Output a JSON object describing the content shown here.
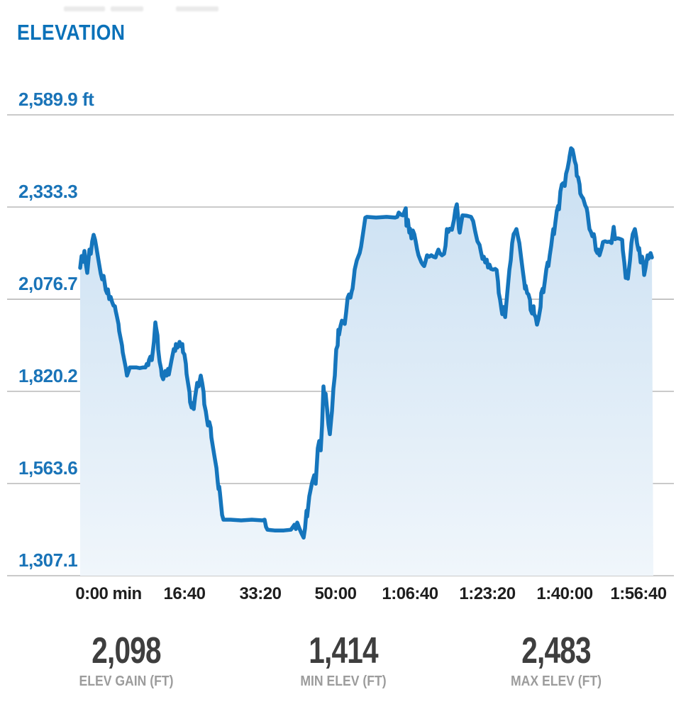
{
  "header": {
    "title": "ELEVATION"
  },
  "colors": {
    "title_blue": "#0a71b9",
    "axis_label_blue": "#1a74b8",
    "line_blue": "#1575bc",
    "fill_top": "#c9dff2",
    "fill_bottom": "#f0f6fb",
    "gridline_gray": "#ababab",
    "x_label_dark": "#1e1e1e",
    "stat_value_gray": "#3e3e3e",
    "stat_label_gray": "#9c9c9c"
  },
  "chart_data": {
    "type": "area",
    "title": "ELEVATION",
    "y_unit": "ft",
    "x_unit": "elapsed time (h:mm:ss)",
    "grid": "horizontal-only",
    "legend": "none",
    "y_tick_labels": [
      "2,589.9 ft",
      "2,333.3",
      "2,076.7",
      "1,820.2",
      "1,563.6",
      "1,307.1"
    ],
    "y_tick_values": [
      2589.9,
      2333.3,
      2076.7,
      1820.2,
      1563.6,
      1307.1
    ],
    "ylim": [
      1307.1,
      2589.9
    ],
    "x_tick_labels": [
      "0:00 min",
      "16:40",
      "33:20",
      "50:00",
      "1:06:40",
      "1:23:20",
      "1:40:00",
      "1:56:40"
    ],
    "t_range_seconds": [
      0,
      7533
    ],
    "series_name": "elevation_profile",
    "points_format": "[t_seconds, elevation_ft]",
    "points": [
      [
        0,
        2164
      ],
      [
        19,
        2197
      ],
      [
        37,
        2181
      ],
      [
        56,
        2211
      ],
      [
        75,
        2175
      ],
      [
        93,
        2150
      ],
      [
        122,
        2215
      ],
      [
        140,
        2203
      ],
      [
        159,
        2238
      ],
      [
        178,
        2256
      ],
      [
        196,
        2242
      ],
      [
        215,
        2219
      ],
      [
        243,
        2183
      ],
      [
        271,
        2148
      ],
      [
        290,
        2132
      ],
      [
        308,
        2142
      ],
      [
        337,
        2102
      ],
      [
        355,
        2093
      ],
      [
        365,
        2104
      ],
      [
        383,
        2077
      ],
      [
        402,
        2083
      ],
      [
        421,
        2069
      ],
      [
        439,
        2059
      ],
      [
        458,
        2057
      ],
      [
        467,
        2045
      ],
      [
        486,
        2027
      ],
      [
        505,
        2008
      ],
      [
        514,
        1988
      ],
      [
        533,
        1968
      ],
      [
        551,
        1948
      ],
      [
        561,
        1929
      ],
      [
        579,
        1909
      ],
      [
        598,
        1889
      ],
      [
        617,
        1864
      ],
      [
        636,
        1875
      ],
      [
        654,
        1887
      ],
      [
        692,
        1887
      ],
      [
        738,
        1887
      ],
      [
        785,
        1885
      ],
      [
        832,
        1887
      ],
      [
        860,
        1887
      ],
      [
        879,
        1897
      ],
      [
        897,
        1893
      ],
      [
        907,
        1907
      ],
      [
        925,
        1917
      ],
      [
        944,
        1907
      ],
      [
        972,
        1958
      ],
      [
        991,
        2012
      ],
      [
        1000,
        1998
      ],
      [
        1019,
        1976
      ],
      [
        1028,
        1937
      ],
      [
        1047,
        1903
      ],
      [
        1066,
        1883
      ],
      [
        1075,
        1864
      ],
      [
        1094,
        1854
      ],
      [
        1122,
        1877
      ],
      [
        1140,
        1864
      ],
      [
        1159,
        1883
      ],
      [
        1168,
        1867
      ],
      [
        1206,
        1909
      ],
      [
        1234,
        1938
      ],
      [
        1252,
        1933
      ],
      [
        1262,
        1952
      ],
      [
        1281,
        1942
      ],
      [
        1299,
        1948
      ],
      [
        1309,
        1958
      ],
      [
        1327,
        1946
      ],
      [
        1346,
        1952
      ],
      [
        1355,
        1929
      ],
      [
        1374,
        1923
      ],
      [
        1393,
        1897
      ],
      [
        1402,
        1869
      ],
      [
        1421,
        1844
      ],
      [
        1440,
        1818
      ],
      [
        1449,
        1790
      ],
      [
        1468,
        1775
      ],
      [
        1486,
        1788
      ],
      [
        1496,
        1771
      ],
      [
        1514,
        1804
      ],
      [
        1533,
        1830
      ],
      [
        1542,
        1844
      ],
      [
        1561,
        1834
      ],
      [
        1589,
        1864
      ],
      [
        1608,
        1844
      ],
      [
        1626,
        1818
      ],
      [
        1636,
        1784
      ],
      [
        1655,
        1765
      ],
      [
        1673,
        1739
      ],
      [
        1683,
        1725
      ],
      [
        1701,
        1735
      ],
      [
        1720,
        1719
      ],
      [
        1729,
        1692
      ],
      [
        1767,
        1642
      ],
      [
        1795,
        1607
      ],
      [
        1813,
        1567
      ],
      [
        1823,
        1548
      ],
      [
        1832,
        1555
      ],
      [
        1841,
        1538
      ],
      [
        1860,
        1498
      ],
      [
        1870,
        1476
      ],
      [
        1888,
        1463
      ],
      [
        1981,
        1463
      ],
      [
        2122,
        1461
      ],
      [
        2262,
        1463
      ],
      [
        2402,
        1461
      ],
      [
        2430,
        1463
      ],
      [
        2449,
        1443
      ],
      [
        2468,
        1435
      ],
      [
        2561,
        1433
      ],
      [
        2683,
        1433
      ],
      [
        2776,
        1435
      ],
      [
        2804,
        1443
      ],
      [
        2823,
        1449
      ],
      [
        2842,
        1437
      ],
      [
        2860,
        1455
      ],
      [
        2888,
        1439
      ],
      [
        2916,
        1425
      ],
      [
        2944,
        1413
      ],
      [
        2963,
        1439
      ],
      [
        2982,
        1488
      ],
      [
        2991,
        1472
      ],
      [
        3019,
        1528
      ],
      [
        3056,
        1567
      ],
      [
        3084,
        1587
      ],
      [
        3103,
        1563
      ],
      [
        3131,
        1662
      ],
      [
        3150,
        1682
      ],
      [
        3169,
        1656
      ],
      [
        3187,
        1725
      ],
      [
        3206,
        1834
      ],
      [
        3225,
        1788
      ],
      [
        3234,
        1814
      ],
      [
        3253,
        1771
      ],
      [
        3271,
        1729
      ],
      [
        3290,
        1701
      ],
      [
        3309,
        1745
      ],
      [
        3318,
        1765
      ],
      [
        3337,
        1828
      ],
      [
        3355,
        1864
      ],
      [
        3365,
        1903
      ],
      [
        3374,
        1937
      ],
      [
        3393,
        1948
      ],
      [
        3402,
        1992
      ],
      [
        3411,
        1978
      ],
      [
        3430,
        2002
      ],
      [
        3449,
        2017
      ],
      [
        3467,
        2012
      ],
      [
        3486,
        2008
      ],
      [
        3505,
        2041
      ],
      [
        3524,
        2081
      ],
      [
        3542,
        2090
      ],
      [
        3561,
        2081
      ],
      [
        3580,
        2100
      ],
      [
        3589,
        2106
      ],
      [
        3608,
        2140
      ],
      [
        3617,
        2159
      ],
      [
        3645,
        2185
      ],
      [
        3664,
        2195
      ],
      [
        3682,
        2205
      ],
      [
        3701,
        2223
      ],
      [
        3711,
        2238
      ],
      [
        3739,
        2278
      ],
      [
        3757,
        2304
      ],
      [
        3776,
        2306
      ],
      [
        3898,
        2304
      ],
      [
        4038,
        2306
      ],
      [
        4150,
        2304
      ],
      [
        4178,
        2306
      ],
      [
        4197,
        2318
      ],
      [
        4225,
        2312
      ],
      [
        4253,
        2310
      ],
      [
        4290,
        2330
      ],
      [
        4299,
        2281
      ],
      [
        4318,
        2298
      ],
      [
        4337,
        2262
      ],
      [
        4346,
        2273
      ],
      [
        4365,
        2246
      ],
      [
        4383,
        2268
      ],
      [
        4402,
        2258
      ],
      [
        4421,
        2238
      ],
      [
        4440,
        2215
      ],
      [
        4458,
        2199
      ],
      [
        4477,
        2189
      ],
      [
        4496,
        2179
      ],
      [
        4514,
        2173
      ],
      [
        4533,
        2169
      ],
      [
        4552,
        2183
      ],
      [
        4570,
        2199
      ],
      [
        4598,
        2195
      ],
      [
        4626,
        2199
      ],
      [
        4654,
        2195
      ],
      [
        4682,
        2193
      ],
      [
        4701,
        2205
      ],
      [
        4720,
        2215
      ],
      [
        4738,
        2205
      ],
      [
        4767,
        2199
      ],
      [
        4795,
        2203
      ],
      [
        4813,
        2225
      ],
      [
        4832,
        2272
      ],
      [
        4851,
        2264
      ],
      [
        4869,
        2273
      ],
      [
        4897,
        2270
      ],
      [
        4925,
        2298
      ],
      [
        4944,
        2327
      ],
      [
        4963,
        2341
      ],
      [
        4982,
        2298
      ],
      [
        4991,
        2272
      ],
      [
        5000,
        2262
      ],
      [
        5019,
        2287
      ],
      [
        5038,
        2310
      ],
      [
        5094,
        2309
      ],
      [
        5150,
        2306
      ],
      [
        5178,
        2294
      ],
      [
        5206,
        2264
      ],
      [
        5234,
        2238
      ],
      [
        5262,
        2228
      ],
      [
        5281,
        2208
      ],
      [
        5300,
        2189
      ],
      [
        5318,
        2195
      ],
      [
        5337,
        2179
      ],
      [
        5356,
        2187
      ],
      [
        5374,
        2165
      ],
      [
        5393,
        2173
      ],
      [
        5412,
        2161
      ],
      [
        5440,
        2159
      ],
      [
        5468,
        2161
      ],
      [
        5487,
        2158
      ],
      [
        5505,
        2126
      ],
      [
        5515,
        2094
      ],
      [
        5533,
        2075
      ],
      [
        5552,
        2047
      ],
      [
        5561,
        2035
      ],
      [
        5580,
        2055
      ],
      [
        5599,
        2027
      ],
      [
        5627,
        2094
      ],
      [
        5655,
        2159
      ],
      [
        5673,
        2185
      ],
      [
        5692,
        2233
      ],
      [
        5711,
        2258
      ],
      [
        5730,
        2264
      ],
      [
        5748,
        2272
      ],
      [
        5767,
        2252
      ],
      [
        5786,
        2233
      ],
      [
        5814,
        2185
      ],
      [
        5833,
        2154
      ],
      [
        5851,
        2126
      ],
      [
        5861,
        2106
      ],
      [
        5870,
        2114
      ],
      [
        5889,
        2094
      ],
      [
        5907,
        2090
      ],
      [
        5926,
        2075
      ],
      [
        5935,
        2047
      ],
      [
        5954,
        2037
      ],
      [
        5973,
        2057
      ],
      [
        5982,
        2035
      ],
      [
        6001,
        2027
      ],
      [
        6019,
        2006
      ],
      [
        6038,
        2021
      ],
      [
        6066,
        2055
      ],
      [
        6075,
        2094
      ],
      [
        6094,
        2106
      ],
      [
        6103,
        2096
      ],
      [
        6122,
        2126
      ],
      [
        6141,
        2159
      ],
      [
        6159,
        2179
      ],
      [
        6169,
        2169
      ],
      [
        6187,
        2199
      ],
      [
        6206,
        2225
      ],
      [
        6225,
        2258
      ],
      [
        6234,
        2272
      ],
      [
        6243,
        2258
      ],
      [
        6262,
        2292
      ],
      [
        6281,
        2323
      ],
      [
        6299,
        2337
      ],
      [
        6309,
        2327
      ],
      [
        6327,
        2377
      ],
      [
        6346,
        2396
      ],
      [
        6365,
        2400
      ],
      [
        6384,
        2392
      ],
      [
        6402,
        2426
      ],
      [
        6421,
        2440
      ],
      [
        6440,
        2462
      ],
      [
        6449,
        2475
      ],
      [
        6468,
        2497
      ],
      [
        6487,
        2493
      ],
      [
        6505,
        2475
      ],
      [
        6515,
        2462
      ],
      [
        6533,
        2450
      ],
      [
        6543,
        2420
      ],
      [
        6561,
        2416
      ],
      [
        6580,
        2396
      ],
      [
        6589,
        2371
      ],
      [
        6608,
        2363
      ],
      [
        6627,
        2357
      ],
      [
        6655,
        2337
      ],
      [
        6673,
        2330
      ],
      [
        6683,
        2318
      ],
      [
        6701,
        2287
      ],
      [
        6711,
        2272
      ],
      [
        6729,
        2264
      ],
      [
        6748,
        2252
      ],
      [
        6767,
        2258
      ],
      [
        6776,
        2248
      ],
      [
        6795,
        2213
      ],
      [
        6814,
        2205
      ],
      [
        6823,
        2215
      ],
      [
        6842,
        2199
      ],
      [
        6870,
        2219
      ],
      [
        6888,
        2236
      ],
      [
        6916,
        2238
      ],
      [
        6944,
        2236
      ],
      [
        6973,
        2237
      ],
      [
        7001,
        2233
      ],
      [
        7029,
        2278
      ],
      [
        7048,
        2244
      ],
      [
        7066,
        2246
      ],
      [
        7094,
        2246
      ],
      [
        7122,
        2244
      ],
      [
        7141,
        2242
      ],
      [
        7150,
        2213
      ],
      [
        7169,
        2179
      ],
      [
        7188,
        2136
      ],
      [
        7197,
        2154
      ],
      [
        7216,
        2134
      ],
      [
        7244,
        2185
      ],
      [
        7263,
        2233
      ],
      [
        7281,
        2258
      ],
      [
        7309,
        2272
      ],
      [
        7328,
        2248
      ],
      [
        7337,
        2233
      ],
      [
        7356,
        2213
      ],
      [
        7365,
        2219
      ],
      [
        7384,
        2179
      ],
      [
        7403,
        2195
      ],
      [
        7421,
        2173
      ],
      [
        7431,
        2144
      ],
      [
        7449,
        2164
      ],
      [
        7468,
        2189
      ],
      [
        7477,
        2199
      ],
      [
        7487,
        2189
      ],
      [
        7515,
        2205
      ],
      [
        7533,
        2193
      ]
    ]
  },
  "stats": [
    {
      "value": "2,098",
      "label": "ELEV GAIN (FT)"
    },
    {
      "value": "1,414",
      "label": "MIN ELEV (FT)"
    },
    {
      "value": "2,483",
      "label": "MAX ELEV (FT)"
    }
  ]
}
